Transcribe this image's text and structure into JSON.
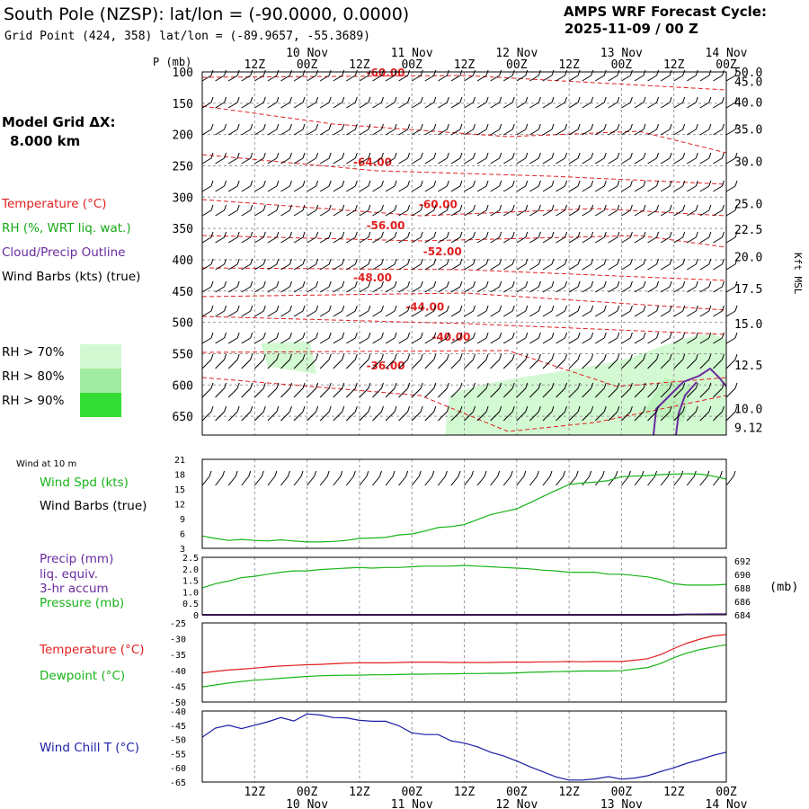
{
  "header": {
    "title": "South Pole (NZSP):  lat/lon = (-90.0000, 0.0000)",
    "subtitle": "Grid Point (424, 358) lat/lon = (-89.9657, -55.3689)",
    "cycle_title": "AMPS WRF Forecast Cycle:",
    "cycle_time": "2025-11-09 / 00  Z"
  },
  "sidebar": {
    "model_grid_label": "Model Grid ΔX:",
    "model_grid_value": "8.000 km",
    "legend": [
      {
        "label": "Temperature (°C)",
        "color": "#e21f1f"
      },
      {
        "label": "RH (%, WRT liq. wat.)",
        "color": "#18a818"
      },
      {
        "label": "Cloud/Precip Outline",
        "color": "#6a2a9e"
      },
      {
        "label": "Wind Barbs (kts) (true)",
        "color": "#000000"
      }
    ],
    "rh_legend": [
      {
        "label": "RH > 70%",
        "color": "#d3f9d3"
      },
      {
        "label": "RH > 80%",
        "color": "#a2eba2"
      },
      {
        "label": "RH > 90%",
        "color": "#33dd33"
      }
    ]
  },
  "colors": {
    "temp": "#e21f1f",
    "green": "#18b418",
    "purple": "#6a2a9e",
    "blue": "#1c1ca8",
    "grid": "#9a9a9a"
  },
  "time_axis": {
    "hours": [
      12,
      24,
      36,
      48,
      60,
      72,
      84,
      96,
      108,
      120
    ],
    "labels": [
      "12Z",
      "00Z",
      "12Z",
      "00Z",
      "12Z",
      "00Z",
      "12Z",
      "00Z",
      "12Z",
      "00Z"
    ],
    "dates": [
      {
        "hour": 24,
        "label": "10 Nov"
      },
      {
        "hour": 48,
        "label": "11 Nov"
      },
      {
        "hour": 72,
        "label": "12 Nov"
      },
      {
        "hour": 96,
        "label": "13 Nov"
      },
      {
        "hour": 120,
        "label": "14 Nov"
      }
    ]
  },
  "chart_data": [
    {
      "type": "heatmap",
      "title": "Time-height cross section",
      "ylabel": "P (mb)",
      "y2label": "Kft MSL",
      "pressure_ticks": [
        100,
        150,
        200,
        250,
        300,
        350,
        400,
        450,
        500,
        550,
        600,
        650
      ],
      "ylim": [
        100,
        680
      ],
      "height_ticks": [
        {
          "label": "50.0",
          "p": 100
        },
        {
          "label": "45.0",
          "p": 115
        },
        {
          "label": "40.0",
          "p": 148
        },
        {
          "label": "35.0",
          "p": 191
        },
        {
          "label": "30.0",
          "p": 243
        },
        {
          "label": "25.0",
          "p": 310
        },
        {
          "label": "22.5",
          "p": 351
        },
        {
          "label": "20.0",
          "p": 395
        },
        {
          "label": "17.5",
          "p": 446
        },
        {
          "label": "15.0",
          "p": 502
        },
        {
          "label": "12.5",
          "p": 568
        },
        {
          "label": "10.0",
          "p": 638
        },
        {
          "label": "9.12",
          "p": 668
        }
      ],
      "temperature_labels": [
        {
          "text": "-60.00",
          "hour": 42,
          "p": 100
        },
        {
          "text": "-64.00",
          "hour": 39,
          "p": 243
        },
        {
          "text": "-60.00",
          "hour": 54,
          "p": 310
        },
        {
          "text": "-56.00",
          "hour": 42,
          "p": 344
        },
        {
          "text": "-52.00",
          "hour": 55,
          "p": 386
        },
        {
          "text": "-48.00",
          "hour": 39,
          "p": 427
        },
        {
          "text": "-44.00",
          "hour": 51,
          "p": 474
        },
        {
          "text": "-40.00",
          "hour": 57,
          "p": 522
        },
        {
          "text": "-36.00",
          "hour": 42,
          "p": 568
        }
      ]
    },
    {
      "type": "line",
      "title": "Wind at 10 m",
      "ylabel": "Wind Spd (kts)",
      "ylabel2": "Wind Barbs (true)",
      "yticks": [
        3,
        6,
        9,
        12,
        15,
        18,
        21
      ],
      "ylim": [
        3,
        21
      ],
      "series": [
        {
          "name": "Wind Spd (kts)",
          "color": "#18b418",
          "x": [
            0,
            3,
            6,
            9,
            12,
            15,
            18,
            21,
            24,
            27,
            30,
            33,
            36,
            39,
            42,
            45,
            48,
            51,
            54,
            57,
            60,
            63,
            66,
            69,
            72,
            75,
            78,
            81,
            84,
            87,
            90,
            93,
            96,
            99,
            102,
            105,
            108,
            111,
            114,
            117,
            120
          ],
          "y": [
            5.5,
            5.0,
            4.6,
            4.8,
            4.6,
            4.5,
            4.7,
            4.5,
            4.3,
            4.3,
            4.4,
            4.6,
            5.0,
            5.1,
            5.2,
            5.7,
            5.9,
            6.5,
            7.2,
            7.4,
            7.8,
            8.8,
            9.8,
            10.4,
            11.0,
            12.2,
            13.5,
            14.7,
            15.9,
            16.2,
            16.4,
            16.7,
            17.5,
            17.6,
            17.7,
            17.9,
            18.0,
            18.1,
            18.0,
            17.6,
            17.0
          ]
        }
      ]
    },
    {
      "type": "line",
      "title": "Precip / Pressure",
      "ylabel": "Precip (mm) liq. equiv. 3-hr accum",
      "ylabel2": "Pressure (mb)",
      "y_left_ticks": [
        "0",
        "0.5",
        "1.0",
        "1.5",
        "2.0",
        "2.5"
      ],
      "y_left_values": [
        0,
        0.5,
        1.0,
        1.5,
        2.0,
        2.5
      ],
      "y_right_ticks": [
        684,
        686,
        688,
        690,
        692
      ],
      "ylim_right": [
        684,
        692.5
      ],
      "right_unit": "(mb)",
      "precip_label": "Precip (mm)",
      "precip_sub1": "liq. equiv.",
      "precip_sub2": "3-hr accum",
      "pressure_label": "Pressure (mb)",
      "series": [
        {
          "name": "Pressure (mb)",
          "color": "#18b418",
          "x": [
            0,
            3,
            6,
            9,
            12,
            15,
            18,
            21,
            24,
            27,
            30,
            33,
            36,
            39,
            42,
            45,
            48,
            51,
            54,
            57,
            60,
            63,
            66,
            69,
            72,
            75,
            78,
            81,
            84,
            87,
            90,
            93,
            96,
            99,
            102,
            105,
            108,
            111,
            114,
            117,
            120
          ],
          "y": [
            688.0,
            688.6,
            689.0,
            689.5,
            689.7,
            690.0,
            690.3,
            690.5,
            690.5,
            690.7,
            690.8,
            690.9,
            691.0,
            690.9,
            691.0,
            691.0,
            691.1,
            691.2,
            691.2,
            691.2,
            691.3,
            691.2,
            691.1,
            691.0,
            690.9,
            690.8,
            690.6,
            690.5,
            690.3,
            690.3,
            690.3,
            690.0,
            690.0,
            689.8,
            689.6,
            689.2,
            688.6,
            688.4,
            688.4,
            688.4,
            688.5
          ]
        },
        {
          "name": "Precip (mm)",
          "color": "#6a2a9e",
          "x": [
            0,
            108,
            111,
            114,
            117,
            120
          ],
          "y": [
            0,
            0,
            0.02,
            0.02,
            0.03,
            0.03
          ]
        }
      ]
    },
    {
      "type": "line",
      "title": "Temperature / Dewpoint",
      "yticks": [
        -50,
        -45,
        -40,
        -35,
        -30,
        -25
      ],
      "ylim": [
        -50,
        -25
      ],
      "temp_label": "Temperature (°C)",
      "dew_label": "Dewpoint (°C)",
      "series": [
        {
          "name": "Temperature (°C)",
          "color": "#e21f1f",
          "x": [
            0,
            3,
            6,
            9,
            12,
            15,
            18,
            21,
            24,
            27,
            30,
            33,
            36,
            39,
            42,
            45,
            48,
            51,
            54,
            57,
            60,
            63,
            66,
            69,
            72,
            75,
            78,
            81,
            84,
            87,
            90,
            93,
            96,
            99,
            102,
            105,
            108,
            111,
            114,
            117,
            120
          ],
          "y": [
            -40.8,
            -40.3,
            -39.9,
            -39.6,
            -39.3,
            -38.9,
            -38.6,
            -38.4,
            -38.2,
            -38.1,
            -37.9,
            -37.7,
            -37.6,
            -37.6,
            -37.6,
            -37.5,
            -37.4,
            -37.4,
            -37.4,
            -37.5,
            -37.5,
            -37.5,
            -37.5,
            -37.4,
            -37.4,
            -37.4,
            -37.3,
            -37.3,
            -37.2,
            -37.3,
            -37.2,
            -37.2,
            -37.2,
            -36.8,
            -36.3,
            -35.0,
            -33.1,
            -31.4,
            -30.1,
            -29.1,
            -28.7
          ]
        },
        {
          "name": "Dewpoint (°C)",
          "color": "#18b418",
          "x": [
            0,
            3,
            6,
            9,
            12,
            15,
            18,
            21,
            24,
            27,
            30,
            33,
            36,
            39,
            42,
            45,
            48,
            51,
            54,
            57,
            60,
            63,
            66,
            69,
            72,
            75,
            78,
            81,
            84,
            87,
            90,
            93,
            96,
            99,
            102,
            105,
            108,
            111,
            114,
            117,
            120
          ],
          "y": [
            -45.2,
            -44.6,
            -44.0,
            -43.5,
            -43.1,
            -42.8,
            -42.5,
            -42.2,
            -41.9,
            -41.7,
            -41.6,
            -41.5,
            -41.5,
            -41.4,
            -41.4,
            -41.3,
            -41.2,
            -41.2,
            -41.1,
            -41.1,
            -41.0,
            -41.0,
            -40.9,
            -40.9,
            -40.8,
            -40.6,
            -40.5,
            -40.4,
            -40.3,
            -40.2,
            -40.2,
            -40.2,
            -40.1,
            -39.6,
            -39.1,
            -37.8,
            -36.0,
            -34.5,
            -33.4,
            -32.6,
            -31.9
          ]
        }
      ]
    },
    {
      "type": "line",
      "title": "Wind Chill",
      "yticks": [
        -65,
        -60,
        -55,
        -50,
        -45,
        -40
      ],
      "ylim": [
        -65,
        -40
      ],
      "label": "Wind Chill T (°C)",
      "series": [
        {
          "name": "Wind Chill T (°C)",
          "color": "#1c1ca8",
          "x": [
            0,
            3,
            6,
            9,
            12,
            15,
            18,
            21,
            24,
            27,
            30,
            33,
            36,
            39,
            42,
            45,
            48,
            51,
            54,
            57,
            60,
            63,
            66,
            69,
            72,
            75,
            78,
            81,
            84,
            87,
            90,
            93,
            96,
            99,
            102,
            105,
            108,
            111,
            114,
            117,
            120
          ],
          "y": [
            -49.2,
            -46.0,
            -45.0,
            -46.2,
            -45.0,
            -43.8,
            -42.3,
            -43.5,
            -41.0,
            -41.4,
            -42.3,
            -42.4,
            -43.3,
            -43.6,
            -43.6,
            -45.2,
            -47.7,
            -48.3,
            -48.3,
            -50.5,
            -51.3,
            -52.6,
            -54.5,
            -55.8,
            -57.6,
            -59.6,
            -61.4,
            -63.2,
            -64.3,
            -64.3,
            -63.9,
            -63.1,
            -64.0,
            -63.6,
            -62.8,
            -61.3,
            -60.0,
            -58.4,
            -57.1,
            -55.6,
            -54.5
          ]
        }
      ]
    }
  ]
}
